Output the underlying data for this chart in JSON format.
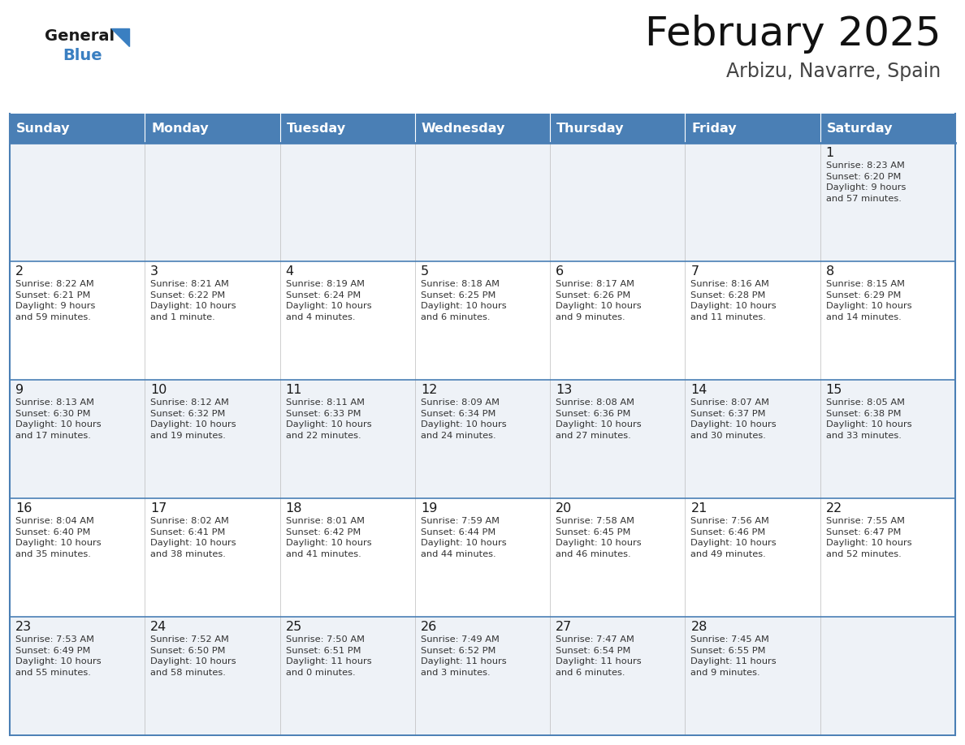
{
  "title": "February 2025",
  "subtitle": "Arbizu, Navarre, Spain",
  "header_color": "#4a7fb5",
  "header_text_color": "#ffffff",
  "cell_bg_light": "#eef2f7",
  "cell_bg_white": "#ffffff",
  "cell_text_color": "#333333",
  "day_number_color": "#1a1a1a",
  "border_color": "#4a7fb5",
  "border_color_light": "#aaaaaa",
  "day_names": [
    "Sunday",
    "Monday",
    "Tuesday",
    "Wednesday",
    "Thursday",
    "Friday",
    "Saturday"
  ],
  "logo_general_color": "#1a1a1a",
  "logo_blue_color": "#3a7fc1",
  "calendar": [
    [
      null,
      null,
      null,
      null,
      null,
      null,
      {
        "day": 1,
        "sunrise": "8:23 AM",
        "sunset": "6:20 PM",
        "daylight": "9 hours\nand 57 minutes."
      }
    ],
    [
      {
        "day": 2,
        "sunrise": "8:22 AM",
        "sunset": "6:21 PM",
        "daylight": "9 hours\nand 59 minutes."
      },
      {
        "day": 3,
        "sunrise": "8:21 AM",
        "sunset": "6:22 PM",
        "daylight": "10 hours\nand 1 minute."
      },
      {
        "day": 4,
        "sunrise": "8:19 AM",
        "sunset": "6:24 PM",
        "daylight": "10 hours\nand 4 minutes."
      },
      {
        "day": 5,
        "sunrise": "8:18 AM",
        "sunset": "6:25 PM",
        "daylight": "10 hours\nand 6 minutes."
      },
      {
        "day": 6,
        "sunrise": "8:17 AM",
        "sunset": "6:26 PM",
        "daylight": "10 hours\nand 9 minutes."
      },
      {
        "day": 7,
        "sunrise": "8:16 AM",
        "sunset": "6:28 PM",
        "daylight": "10 hours\nand 11 minutes."
      },
      {
        "day": 8,
        "sunrise": "8:15 AM",
        "sunset": "6:29 PM",
        "daylight": "10 hours\nand 14 minutes."
      }
    ],
    [
      {
        "day": 9,
        "sunrise": "8:13 AM",
        "sunset": "6:30 PM",
        "daylight": "10 hours\nand 17 minutes."
      },
      {
        "day": 10,
        "sunrise": "8:12 AM",
        "sunset": "6:32 PM",
        "daylight": "10 hours\nand 19 minutes."
      },
      {
        "day": 11,
        "sunrise": "8:11 AM",
        "sunset": "6:33 PM",
        "daylight": "10 hours\nand 22 minutes."
      },
      {
        "day": 12,
        "sunrise": "8:09 AM",
        "sunset": "6:34 PM",
        "daylight": "10 hours\nand 24 minutes."
      },
      {
        "day": 13,
        "sunrise": "8:08 AM",
        "sunset": "6:36 PM",
        "daylight": "10 hours\nand 27 minutes."
      },
      {
        "day": 14,
        "sunrise": "8:07 AM",
        "sunset": "6:37 PM",
        "daylight": "10 hours\nand 30 minutes."
      },
      {
        "day": 15,
        "sunrise": "8:05 AM",
        "sunset": "6:38 PM",
        "daylight": "10 hours\nand 33 minutes."
      }
    ],
    [
      {
        "day": 16,
        "sunrise": "8:04 AM",
        "sunset": "6:40 PM",
        "daylight": "10 hours\nand 35 minutes."
      },
      {
        "day": 17,
        "sunrise": "8:02 AM",
        "sunset": "6:41 PM",
        "daylight": "10 hours\nand 38 minutes."
      },
      {
        "day": 18,
        "sunrise": "8:01 AM",
        "sunset": "6:42 PM",
        "daylight": "10 hours\nand 41 minutes."
      },
      {
        "day": 19,
        "sunrise": "7:59 AM",
        "sunset": "6:44 PM",
        "daylight": "10 hours\nand 44 minutes."
      },
      {
        "day": 20,
        "sunrise": "7:58 AM",
        "sunset": "6:45 PM",
        "daylight": "10 hours\nand 46 minutes."
      },
      {
        "day": 21,
        "sunrise": "7:56 AM",
        "sunset": "6:46 PM",
        "daylight": "10 hours\nand 49 minutes."
      },
      {
        "day": 22,
        "sunrise": "7:55 AM",
        "sunset": "6:47 PM",
        "daylight": "10 hours\nand 52 minutes."
      }
    ],
    [
      {
        "day": 23,
        "sunrise": "7:53 AM",
        "sunset": "6:49 PM",
        "daylight": "10 hours\nand 55 minutes."
      },
      {
        "day": 24,
        "sunrise": "7:52 AM",
        "sunset": "6:50 PM",
        "daylight": "10 hours\nand 58 minutes."
      },
      {
        "day": 25,
        "sunrise": "7:50 AM",
        "sunset": "6:51 PM",
        "daylight": "11 hours\nand 0 minutes."
      },
      {
        "day": 26,
        "sunrise": "7:49 AM",
        "sunset": "6:52 PM",
        "daylight": "11 hours\nand 3 minutes."
      },
      {
        "day": 27,
        "sunrise": "7:47 AM",
        "sunset": "6:54 PM",
        "daylight": "11 hours\nand 6 minutes."
      },
      {
        "day": 28,
        "sunrise": "7:45 AM",
        "sunset": "6:55 PM",
        "daylight": "11 hours\nand 9 minutes."
      },
      null
    ]
  ]
}
